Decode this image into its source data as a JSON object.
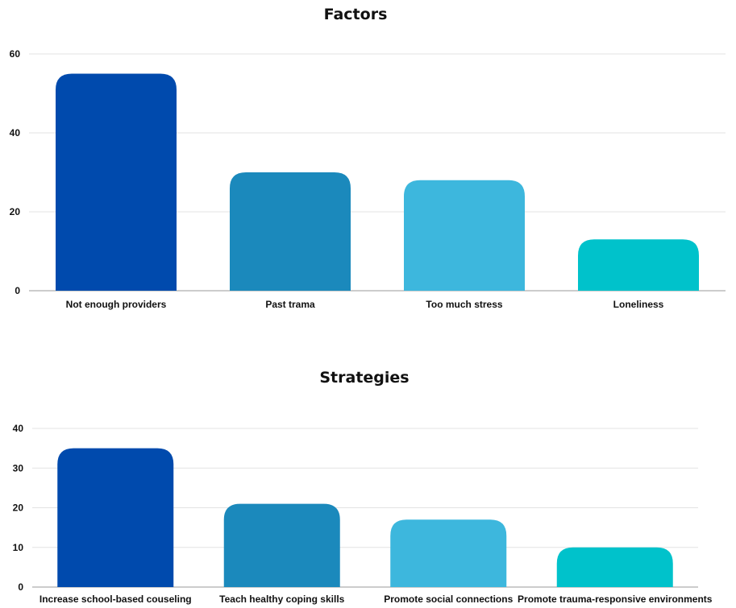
{
  "chart_data": [
    {
      "type": "bar",
      "title": "Factors",
      "categories": [
        "Not enough providers",
        "Past trama",
        "Too much stress",
        "Loneliness"
      ],
      "values": [
        55,
        30,
        28,
        13
      ],
      "colors": [
        "#004aad",
        "#1b89bc",
        "#3db7dd",
        "#00c2cb"
      ],
      "yticks": [
        0,
        20,
        40,
        60
      ],
      "ylim": [
        0,
        60
      ],
      "grid": true,
      "legend": "none"
    },
    {
      "type": "bar",
      "title": "Strategies",
      "categories": [
        "Increase school-based couseling",
        "Teach healthy coping skills",
        "Promote social connections",
        "Promote trauma-responsive environments"
      ],
      "values": [
        35,
        21,
        17,
        10
      ],
      "colors": [
        "#004aad",
        "#1b89bc",
        "#3db7dd",
        "#00c2cb"
      ],
      "yticks": [
        0,
        10,
        20,
        30,
        40
      ],
      "ylim": [
        0,
        40
      ],
      "grid": true,
      "legend": "none"
    }
  ]
}
